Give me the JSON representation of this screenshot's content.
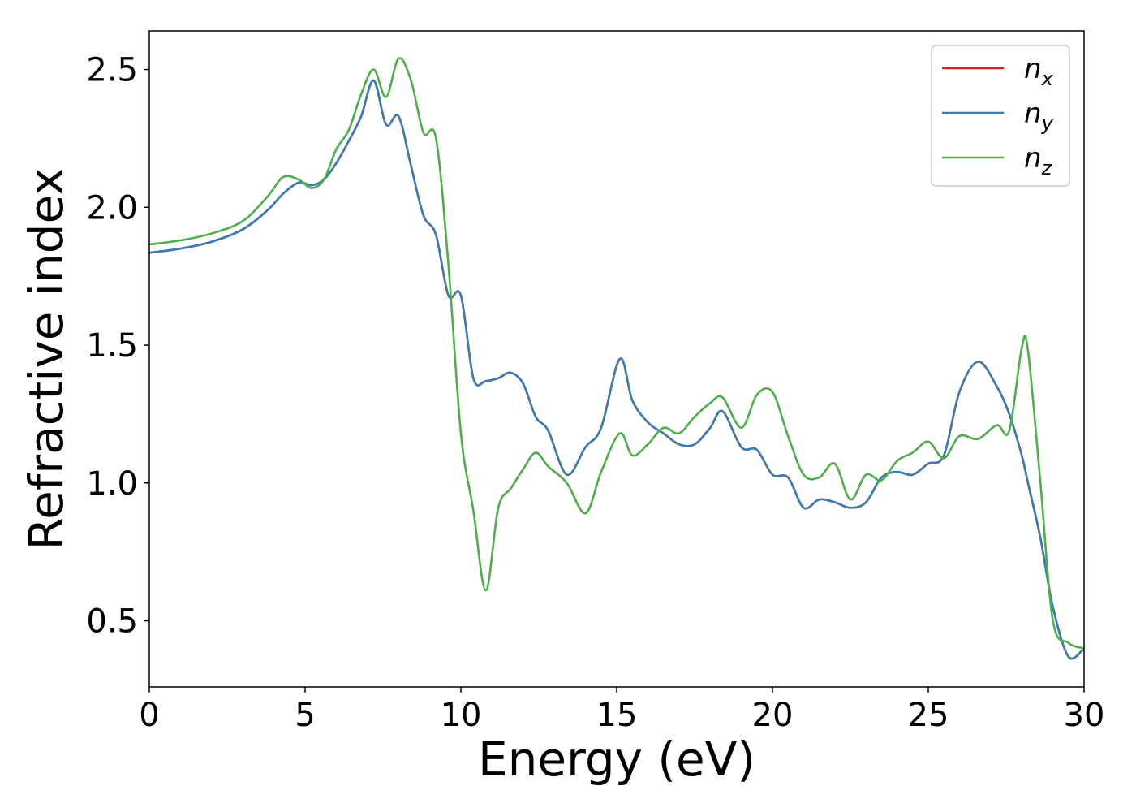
{
  "chart_data": {
    "type": "line",
    "title": "",
    "xlabel": "Energy (eV)",
    "ylabel": "Refractive index",
    "xlim": [
      0,
      30
    ],
    "ylim": [
      0.26,
      2.64
    ],
    "xticks": [
      0,
      5,
      10,
      15,
      20,
      25,
      30
    ],
    "xtick_labels": [
      "0",
      "5",
      "10",
      "15",
      "20",
      "25",
      "30"
    ],
    "yticks": [
      0.5,
      1.0,
      1.5,
      2.0,
      2.5
    ],
    "ytick_labels": [
      "0.5",
      "1.0",
      "1.5",
      "2.0",
      "2.5"
    ],
    "grid": false,
    "legend_position": "top-right",
    "x": [
      0,
      1,
      2,
      3,
      3.8,
      4.3,
      4.8,
      5.2,
      5.6,
      6.0,
      6.4,
      6.8,
      7.2,
      7.6,
      8.0,
      8.4,
      8.8,
      9.2,
      9.6,
      10.0,
      10.4,
      10.8,
      11.2,
      11.6,
      12.0,
      12.4,
      12.8,
      13.4,
      14.0,
      14.5,
      15.1,
      15.5,
      16.0,
      16.5,
      17.0,
      17.5,
      18.0,
      18.4,
      19.0,
      19.5,
      20.0,
      20.5,
      21.0,
      21.5,
      22.0,
      22.5,
      23.0,
      23.5,
      24.0,
      24.5,
      25.0,
      25.5,
      26.0,
      26.6,
      27.2,
      27.6,
      28.0,
      28.2,
      28.6,
      29.0,
      29.5,
      30.0
    ],
    "series": [
      {
        "name": "n_x",
        "color": "#e41a1c",
        "values": [
          1.835,
          1.85,
          1.875,
          1.92,
          1.99,
          2.05,
          2.09,
          2.08,
          2.1,
          2.16,
          2.24,
          2.33,
          2.46,
          2.3,
          2.33,
          2.15,
          1.97,
          1.9,
          1.68,
          1.68,
          1.38,
          1.37,
          1.38,
          1.4,
          1.36,
          1.24,
          1.19,
          1.03,
          1.13,
          1.2,
          1.45,
          1.3,
          1.22,
          1.18,
          1.14,
          1.14,
          1.2,
          1.26,
          1.13,
          1.12,
          1.03,
          1.02,
          0.91,
          0.94,
          0.93,
          0.91,
          0.93,
          1.02,
          1.04,
          1.03,
          1.07,
          1.1,
          1.33,
          1.44,
          1.35,
          1.25,
          1.1,
          1.0,
          0.8,
          0.55,
          0.37,
          0.4
        ]
      },
      {
        "name": "n_y",
        "color": "#377eb8",
        "values": [
          1.835,
          1.85,
          1.875,
          1.92,
          1.99,
          2.05,
          2.09,
          2.08,
          2.1,
          2.16,
          2.24,
          2.33,
          2.46,
          2.3,
          2.33,
          2.15,
          1.97,
          1.9,
          1.68,
          1.68,
          1.38,
          1.37,
          1.38,
          1.4,
          1.36,
          1.24,
          1.19,
          1.03,
          1.13,
          1.2,
          1.45,
          1.3,
          1.22,
          1.18,
          1.14,
          1.14,
          1.2,
          1.26,
          1.13,
          1.12,
          1.03,
          1.02,
          0.91,
          0.94,
          0.93,
          0.91,
          0.93,
          1.02,
          1.04,
          1.03,
          1.07,
          1.1,
          1.33,
          1.44,
          1.35,
          1.25,
          1.1,
          1.0,
          0.8,
          0.55,
          0.37,
          0.4
        ]
      },
      {
        "name": "n_z",
        "color": "#4daf4a",
        "values": [
          1.865,
          1.88,
          1.905,
          1.95,
          2.04,
          2.11,
          2.1,
          2.07,
          2.1,
          2.21,
          2.28,
          2.41,
          2.5,
          2.4,
          2.54,
          2.46,
          2.27,
          2.25,
          1.79,
          1.18,
          0.9,
          0.61,
          0.91,
          0.98,
          1.05,
          1.11,
          1.06,
          1.0,
          0.89,
          1.04,
          1.18,
          1.1,
          1.14,
          1.2,
          1.18,
          1.24,
          1.29,
          1.31,
          1.2,
          1.32,
          1.33,
          1.17,
          1.03,
          1.02,
          1.07,
          0.94,
          1.03,
          1.01,
          1.08,
          1.11,
          1.15,
          1.09,
          1.17,
          1.16,
          1.21,
          1.19,
          1.49,
          1.48,
          1.0,
          0.5,
          0.42,
          0.4
        ]
      }
    ]
  },
  "legend": {
    "items": [
      {
        "base": "n",
        "sub": "x",
        "color": "#e41a1c"
      },
      {
        "base": "n",
        "sub": "y",
        "color": "#377eb8"
      },
      {
        "base": "n",
        "sub": "z",
        "color": "#4daf4a"
      }
    ]
  }
}
